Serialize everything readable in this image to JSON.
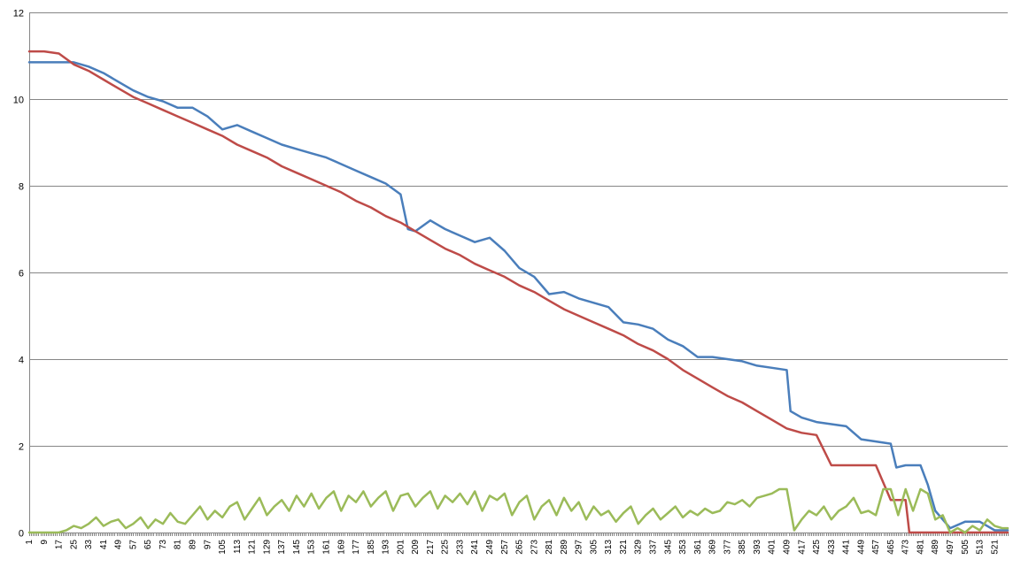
{
  "chart_data": {
    "type": "line",
    "title": "",
    "xlabel": "",
    "ylabel": "",
    "xlim": [
      1,
      528
    ],
    "ylim": [
      0,
      12
    ],
    "y_ticks": [
      0,
      2,
      4,
      6,
      8,
      10,
      12
    ],
    "x_ticks": [
      1,
      9,
      17,
      25,
      33,
      41,
      49,
      57,
      65,
      73,
      81,
      89,
      97,
      105,
      113,
      121,
      129,
      137,
      145,
      153,
      161,
      169,
      177,
      185,
      193,
      201,
      209,
      217,
      225,
      233,
      241,
      249,
      257,
      265,
      273,
      281,
      289,
      297,
      305,
      313,
      321,
      329,
      337,
      345,
      353,
      361,
      369,
      377,
      385,
      393,
      401,
      409,
      417,
      425,
      433,
      441,
      449,
      457,
      465,
      473,
      481,
      489,
      497,
      505,
      513,
      521
    ],
    "grid": "horizontal",
    "legend": "none",
    "series": [
      {
        "color": "#4a7ebb",
        "x": [
          1,
          9,
          17,
          25,
          33,
          41,
          49,
          57,
          65,
          73,
          81,
          89,
          97,
          105,
          113,
          121,
          129,
          137,
          145,
          153,
          161,
          169,
          177,
          185,
          193,
          201,
          205,
          209,
          217,
          225,
          233,
          241,
          249,
          257,
          265,
          273,
          281,
          289,
          297,
          305,
          313,
          321,
          329,
          337,
          345,
          353,
          361,
          369,
          377,
          385,
          393,
          401,
          409,
          411,
          417,
          425,
          433,
          441,
          449,
          457,
          465,
          468,
          473,
          481,
          485,
          489,
          497,
          505,
          513,
          521,
          528
        ],
        "y": [
          10.85,
          10.85,
          10.85,
          10.85,
          10.75,
          10.6,
          10.4,
          10.2,
          10.05,
          9.95,
          9.8,
          9.8,
          9.6,
          9.3,
          9.4,
          9.25,
          9.1,
          8.95,
          8.85,
          8.75,
          8.65,
          8.5,
          8.35,
          8.2,
          8.05,
          7.8,
          7.0,
          6.95,
          7.2,
          7.0,
          6.85,
          6.7,
          6.8,
          6.5,
          6.1,
          5.9,
          5.5,
          5.55,
          5.4,
          5.3,
          5.2,
          4.85,
          4.8,
          4.7,
          4.45,
          4.3,
          4.05,
          4.05,
          4.0,
          3.95,
          3.85,
          3.8,
          3.75,
          2.8,
          2.65,
          2.55,
          2.5,
          2.45,
          2.15,
          2.1,
          2.05,
          1.5,
          1.55,
          1.55,
          1.1,
          0.5,
          0.1,
          0.25,
          0.25,
          0.05,
          0.05
        ]
      },
      {
        "color": "#be4b48",
        "x": [
          1,
          9,
          17,
          25,
          33,
          41,
          49,
          57,
          65,
          73,
          81,
          89,
          97,
          105,
          113,
          121,
          129,
          137,
          145,
          153,
          161,
          169,
          177,
          185,
          193,
          201,
          209,
          217,
          225,
          233,
          241,
          249,
          257,
          265,
          273,
          281,
          289,
          297,
          305,
          313,
          321,
          329,
          337,
          345,
          353,
          361,
          369,
          377,
          385,
          393,
          401,
          409,
          417,
          425,
          433,
          441,
          449,
          457,
          465,
          473,
          475,
          481,
          489,
          497,
          505,
          513,
          521,
          528
        ],
        "y": [
          11.1,
          11.1,
          11.05,
          10.8,
          10.65,
          10.45,
          10.25,
          10.05,
          9.9,
          9.75,
          9.6,
          9.45,
          9.3,
          9.15,
          8.95,
          8.8,
          8.65,
          8.45,
          8.3,
          8.15,
          8.0,
          7.85,
          7.65,
          7.5,
          7.3,
          7.15,
          6.95,
          6.75,
          6.55,
          6.4,
          6.2,
          6.05,
          5.9,
          5.7,
          5.55,
          5.35,
          5.15,
          5.0,
          4.85,
          4.7,
          4.55,
          4.35,
          4.2,
          4.0,
          3.75,
          3.55,
          3.35,
          3.15,
          3.0,
          2.8,
          2.6,
          2.4,
          2.3,
          2.25,
          1.55,
          1.55,
          1.55,
          1.55,
          0.75,
          0.75,
          0,
          0,
          0,
          0,
          0,
          0,
          0,
          0
        ]
      },
      {
        "color": "#9bbb59",
        "x": [
          1,
          9,
          17,
          21,
          25,
          29,
          33,
          37,
          41,
          45,
          49,
          53,
          57,
          61,
          65,
          69,
          73,
          77,
          81,
          85,
          89,
          93,
          97,
          101,
          105,
          109,
          113,
          117,
          121,
          125,
          129,
          133,
          137,
          141,
          145,
          149,
          153,
          157,
          161,
          165,
          169,
          173,
          177,
          181,
          185,
          189,
          193,
          197,
          201,
          205,
          209,
          213,
          217,
          221,
          225,
          229,
          233,
          237,
          241,
          245,
          249,
          253,
          257,
          261,
          265,
          269,
          273,
          277,
          281,
          285,
          289,
          293,
          297,
          301,
          305,
          309,
          313,
          317,
          321,
          325,
          329,
          333,
          337,
          341,
          345,
          349,
          353,
          357,
          361,
          365,
          369,
          373,
          377,
          381,
          385,
          389,
          393,
          397,
          401,
          405,
          409,
          413,
          417,
          421,
          425,
          429,
          433,
          437,
          441,
          445,
          449,
          453,
          457,
          461,
          465,
          469,
          473,
          477,
          481,
          485,
          489,
          493,
          497,
          501,
          505,
          509,
          513,
          517,
          521,
          525,
          528
        ],
        "y": [
          0,
          0,
          0,
          0.05,
          0.15,
          0.1,
          0.2,
          0.35,
          0.15,
          0.25,
          0.3,
          0.1,
          0.2,
          0.35,
          0.1,
          0.3,
          0.2,
          0.45,
          0.25,
          0.2,
          0.4,
          0.6,
          0.3,
          0.5,
          0.35,
          0.6,
          0.7,
          0.3,
          0.55,
          0.8,
          0.4,
          0.6,
          0.75,
          0.5,
          0.85,
          0.6,
          0.9,
          0.55,
          0.8,
          0.95,
          0.5,
          0.85,
          0.7,
          0.95,
          0.6,
          0.8,
          0.95,
          0.5,
          0.85,
          0.9,
          0.6,
          0.8,
          0.95,
          0.55,
          0.85,
          0.7,
          0.9,
          0.65,
          0.95,
          0.5,
          0.85,
          0.75,
          0.9,
          0.4,
          0.7,
          0.85,
          0.3,
          0.6,
          0.75,
          0.4,
          0.8,
          0.5,
          0.7,
          0.3,
          0.6,
          0.4,
          0.5,
          0.25,
          0.45,
          0.6,
          0.2,
          0.4,
          0.55,
          0.3,
          0.45,
          0.6,
          0.35,
          0.5,
          0.4,
          0.55,
          0.45,
          0.5,
          0.7,
          0.65,
          0.75,
          0.6,
          0.8,
          0.85,
          0.9,
          1.0,
          1.0,
          0.05,
          0.3,
          0.5,
          0.4,
          0.6,
          0.3,
          0.5,
          0.6,
          0.8,
          0.45,
          0.5,
          0.4,
          1.0,
          1.0,
          0.4,
          1.0,
          0.5,
          1.0,
          0.9,
          0.3,
          0.4,
          0.0,
          0.1,
          0.0,
          0.15,
          0.05,
          0.3,
          0.15,
          0.1,
          0.1
        ]
      }
    ]
  }
}
